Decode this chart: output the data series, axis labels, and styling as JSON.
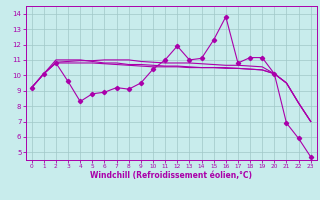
{
  "xlabel": "Windchill (Refroidissement éolien,°C)",
  "background_color": "#c8ecec",
  "grid_color": "#a0c8c8",
  "line_color": "#aa00aa",
  "xlim": [
    -0.5,
    23.5
  ],
  "ylim": [
    4.5,
    14.5
  ],
  "xticks": [
    0,
    1,
    2,
    3,
    4,
    5,
    6,
    7,
    8,
    9,
    10,
    11,
    12,
    13,
    14,
    15,
    16,
    17,
    18,
    19,
    20,
    21,
    22,
    23
  ],
  "yticks": [
    5,
    6,
    7,
    8,
    9,
    10,
    11,
    12,
    13,
    14
  ],
  "line1_x": [
    0,
    1,
    2,
    3,
    4,
    5,
    6,
    7,
    8,
    9,
    10,
    11,
    12,
    13,
    14,
    15,
    16,
    17,
    18,
    19,
    20,
    21,
    22,
    23
  ],
  "line1_y": [
    9.2,
    10.1,
    10.8,
    9.6,
    8.3,
    8.8,
    8.9,
    9.2,
    9.1,
    9.5,
    10.4,
    11.0,
    11.9,
    11.0,
    11.1,
    12.3,
    13.8,
    10.8,
    11.15,
    11.15,
    10.1,
    6.9,
    5.9,
    4.7
  ],
  "line2_x": [
    0,
    1,
    2,
    3,
    4,
    5,
    6,
    7,
    8,
    9,
    10,
    11,
    12,
    13,
    14,
    15,
    16,
    17,
    18,
    19,
    20,
    21,
    22,
    23
  ],
  "line2_y": [
    9.2,
    10.1,
    10.8,
    10.8,
    10.8,
    10.8,
    10.75,
    10.7,
    10.65,
    10.6,
    10.55,
    10.55,
    10.55,
    10.5,
    10.5,
    10.5,
    10.5,
    10.45,
    10.4,
    10.35,
    10.1,
    9.5,
    8.2,
    7.0
  ],
  "line3_x": [
    0,
    1,
    2,
    3,
    4,
    5,
    6,
    7,
    8,
    9,
    10,
    11,
    12,
    13,
    14,
    15,
    16,
    17,
    18,
    19,
    20,
    21,
    22,
    23
  ],
  "line3_y": [
    9.2,
    10.1,
    10.85,
    10.9,
    10.95,
    10.95,
    11.0,
    11.0,
    11.0,
    10.9,
    10.85,
    10.8,
    10.8,
    10.8,
    10.75,
    10.7,
    10.65,
    10.65,
    10.6,
    10.55,
    10.1,
    9.5,
    8.2,
    7.0
  ],
  "line4_x": [
    0,
    1,
    2,
    3,
    4,
    5,
    6,
    7,
    8,
    9,
    10,
    11,
    12,
    13,
    14,
    15,
    16,
    17,
    18,
    19,
    20,
    21,
    22,
    23
  ],
  "line4_y": [
    9.2,
    10.1,
    11.0,
    11.0,
    11.0,
    10.9,
    10.8,
    10.8,
    10.7,
    10.7,
    10.65,
    10.6,
    10.6,
    10.55,
    10.5,
    10.5,
    10.45,
    10.45,
    10.4,
    10.35,
    10.1,
    9.5,
    8.2,
    7.0
  ],
  "tick_fontsize": 5,
  "xlabel_fontsize": 5.5,
  "linewidth": 0.8,
  "marker_size": 2.2
}
